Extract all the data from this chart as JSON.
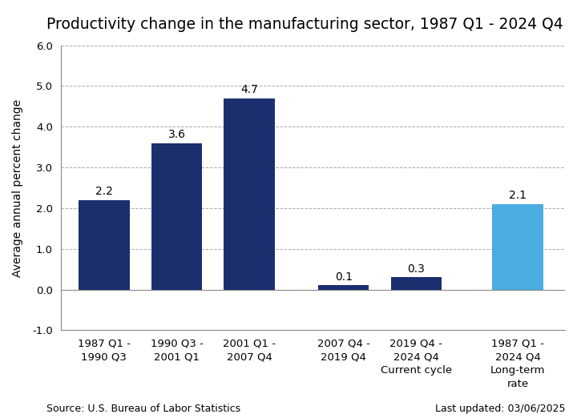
{
  "title": "Productivity change in the manufacturing sector, 1987 Q1 - 2024 Q4",
  "ylabel": "Average annual percent change",
  "categories": [
    "1987 Q1 -\n1990 Q3",
    "1990 Q3 -\n2001 Q1",
    "2001 Q1 -\n2007 Q4",
    "2007 Q4 -\n2019 Q4",
    "2019 Q4 -\n2024 Q4\nCurrent cycle",
    "1987 Q1 -\n2024 Q4\nLong-term\nrate"
  ],
  "values": [
    2.2,
    3.6,
    4.7,
    0.1,
    0.3,
    2.1
  ],
  "bar_colors": [
    "#1b2f6e",
    "#1b2f6e",
    "#1b2f6e",
    "#1b2f6e",
    "#1b2f6e",
    "#4aace0"
  ],
  "ylim": [
    -1.0,
    6.0
  ],
  "yticks": [
    -1.0,
    0.0,
    1.0,
    2.0,
    3.0,
    4.0,
    5.0,
    6.0
  ],
  "source_text": "Source: U.S. Bureau of Labor Statistics",
  "update_text": "Last updated: 03/06/2025",
  "title_fontsize": 13.5,
  "label_fontsize": 10,
  "tick_fontsize": 9.5,
  "bar_label_fontsize": 10,
  "source_fontsize": 9,
  "background_color": "#ffffff",
  "grid_color": "#aaaaaa"
}
